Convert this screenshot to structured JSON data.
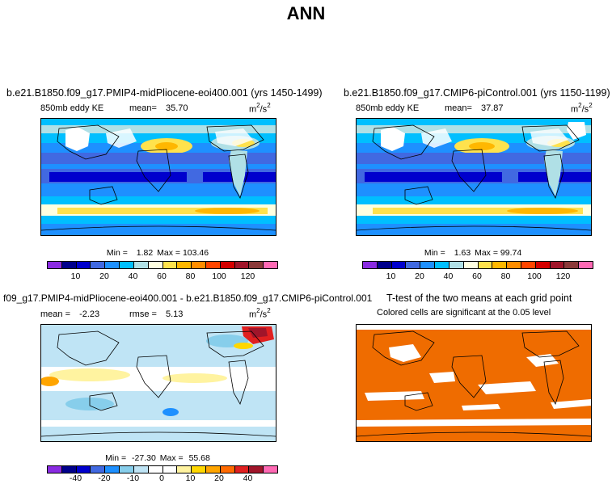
{
  "main_title": "ANN",
  "panel1": {
    "title": "b.e21.B1850.f09_g17.PMIP4-midPliocene-eoi400.001 (yrs 1450-1499)",
    "label": "850mb eddy KE",
    "mean_label": "mean=",
    "mean_value": "35.70",
    "units_base": "m",
    "units_mid": "/s",
    "units_exp": "2",
    "min_label": "Min =",
    "min_value": "1.82",
    "max_label": "Max =",
    "max_value": "103.46"
  },
  "panel2": {
    "title": "b.e21.B1850.f09_g17.CMIP6-piControl.001 (yrs 1150-1199)",
    "label": "850mb eddy KE",
    "mean_label": "mean=",
    "mean_value": "37.87",
    "units_base": "m",
    "units_mid": "/s",
    "units_exp": "2",
    "min_label": "Min =",
    "min_value": "1.63",
    "max_label": "Max =",
    "max_value": "99.74"
  },
  "panel3": {
    "title": "f09_g17.PMIP4-midPliocene-eoi400.001 - b.e21.B1850.f09_g17.CMIP6-piControl.001",
    "mean_label": "mean =",
    "mean_value": "-2.23",
    "rmse_label": "rmse =",
    "rmse_value": "5.13",
    "units_base": "m",
    "units_mid": "/s",
    "units_exp": "2",
    "min_label": "Min =",
    "min_value": "-27.30",
    "max_label": "Max =",
    "max_value": "55.68"
  },
  "panel4": {
    "title": "T-test of the two means at each grid point",
    "subtitle": "Colored cells are significant at the 0.05 level"
  },
  "colorbar_abs": {
    "colors": [
      "#8a2be2",
      "#00008b",
      "#0000cd",
      "#4169e1",
      "#1e90ff",
      "#00bfff",
      "#b0e0e6",
      "#ffffe0",
      "#ffe24d",
      "#ffb700",
      "#ff8c00",
      "#ff4500",
      "#d50000",
      "#a0152a",
      "#8b3a3a",
      "#ff69b4"
    ],
    "ticks": [
      "10",
      "20",
      "40",
      "60",
      "80",
      "100",
      "120"
    ]
  },
  "colorbar_diff": {
    "colors": [
      "#8a2be2",
      "#00008b",
      "#0000cd",
      "#4169e1",
      "#1e90ff",
      "#87ceeb",
      "#bfe4f5",
      "#ffffff",
      "#ffffff",
      "#fff3a0",
      "#ffd700",
      "#ffa500",
      "#ff6a00",
      "#e02020",
      "#a0152a",
      "#ff69b4"
    ],
    "ticks": [
      "-40",
      "-20",
      "-10",
      "0",
      "10",
      "20",
      "40"
    ]
  },
  "ttest_color": "#ef6c00"
}
